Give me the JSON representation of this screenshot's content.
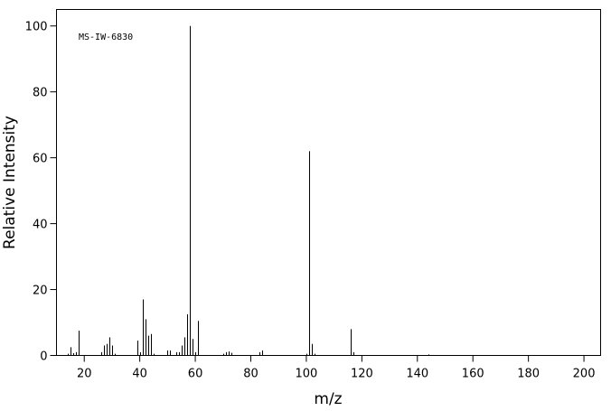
{
  "chart_data": {
    "type": "stem",
    "annotation": "MS-IW-6830",
    "x_label": "m/z",
    "y_label": "Relative Intensity",
    "x": [
      14,
      15,
      16,
      17,
      18,
      26,
      27,
      28,
      29,
      30,
      31,
      39,
      40,
      41,
      42,
      43,
      44,
      45,
      50,
      51,
      53,
      54,
      55,
      56,
      57,
      58,
      59,
      60,
      61,
      70,
      71,
      72,
      73,
      83,
      84,
      100,
      101,
      102,
      103,
      116,
      117,
      144
    ],
    "values": [
      0.5,
      2.5,
      0.7,
      1,
      7.5,
      1,
      3,
      3.5,
      5.5,
      3,
      0.5,
      4.5,
      1,
      17,
      11,
      6,
      6.5,
      0.5,
      1.5,
      1.5,
      1,
      1,
      3,
      5.5,
      12.5,
      100,
      5,
      1,
      10.5,
      0.5,
      1,
      1.2,
      0.8,
      1,
      1.5,
      0.5,
      62,
      3.5,
      0.5,
      8,
      1,
      0.3
    ],
    "color": "#000000",
    "xlim": [
      10,
      206
    ],
    "ylim": [
      0,
      105
    ],
    "xticks": [
      20,
      40,
      60,
      80,
      100,
      120,
      140,
      160,
      180,
      200
    ],
    "yticks": [
      0,
      20,
      40,
      60,
      80,
      100
    ]
  }
}
